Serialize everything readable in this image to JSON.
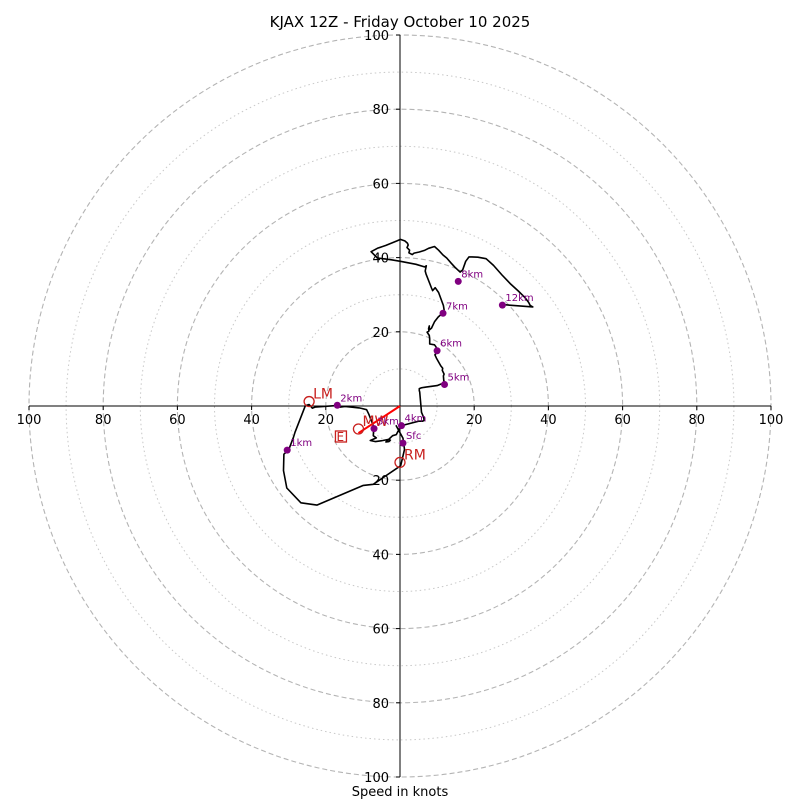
{
  "chart_data": {
    "type": "hodograph",
    "title": "KJAX 12Z - Friday October 10 2025",
    "xlabel": "Speed in knots",
    "units": "knots",
    "rmax": 100,
    "ring_major": [
      20,
      40,
      60,
      80,
      100
    ],
    "ring_minor": [
      10,
      30,
      50,
      70,
      90
    ],
    "tick_labels_x": [
      "100",
      "80",
      "60",
      "40",
      "20",
      "20",
      "40",
      "60",
      "80",
      "100"
    ],
    "tick_values_x": [
      -100,
      -80,
      -60,
      -40,
      -20,
      20,
      40,
      60,
      80,
      100
    ],
    "tick_labels_y": [
      "100",
      "80",
      "60",
      "40",
      "20",
      "20",
      "40",
      "60",
      "80",
      "100"
    ],
    "tick_values_y": [
      100,
      80,
      60,
      40,
      20,
      -20,
      -40,
      -60,
      -80,
      -100
    ],
    "trace": [
      [
        -1.1,
        -5.2
      ],
      [
        0.8,
        -8.7
      ],
      [
        1.2,
        -11.7
      ],
      [
        0.2,
        -16.1
      ],
      [
        -7.2,
        -21.1
      ],
      [
        -9.9,
        -21.4
      ],
      [
        -22.4,
        -26.7
      ],
      [
        -26.7,
        -26.1
      ],
      [
        -30.5,
        -22.1
      ],
      [
        -31.4,
        -17.4
      ],
      [
        -31.3,
        -13.0
      ],
      [
        -30.0,
        -11.8
      ],
      [
        -28.7,
        -8.4
      ],
      [
        -28.3,
        -7.1
      ],
      [
        -25.5,
        0.1
      ],
      [
        -24.5,
        0.4
      ],
      [
        -23.6,
        -0.6
      ],
      [
        -22.9,
        -0.3
      ],
      [
        -17.1,
        0.1
      ],
      [
        -16.1,
        -0.3
      ],
      [
        -14.8,
        -0.1
      ],
      [
        -11.0,
        -0.5
      ],
      [
        -10.1,
        -0.7
      ],
      [
        -9.0,
        -1.0
      ],
      [
        -8.4,
        -2.2
      ],
      [
        -7.3,
        -5.0
      ],
      [
        -7.1,
        -5.9
      ],
      [
        -7.2,
        -8.0
      ],
      [
        -6.4,
        -8.6
      ],
      [
        -8.0,
        -9.3
      ],
      [
        -6.6,
        -9.6
      ],
      [
        -4.6,
        -9.3
      ],
      [
        -3.1,
        -9.0
      ],
      [
        -2.6,
        -9.2
      ],
      [
        -3.0,
        -9.6
      ],
      [
        -3.8,
        -9.7
      ],
      [
        -2.0,
        -8.0
      ],
      [
        -1.0,
        -7.7
      ],
      [
        0.2,
        -5.4
      ],
      [
        1.2,
        -5.1
      ],
      [
        5.0,
        -4.1
      ],
      [
        6.0,
        -4.1
      ],
      [
        6.5,
        -3.9
      ],
      [
        6.4,
        -3.1
      ],
      [
        5.8,
        -1.7
      ],
      [
        5.3,
        3.8
      ],
      [
        5.2,
        4.1
      ],
      [
        5.2,
        4.7
      ],
      [
        5.8,
        4.9
      ],
      [
        6.4,
        5.0
      ],
      [
        7.0,
        5.1
      ],
      [
        10.0,
        5.5
      ],
      [
        11.0,
        5.9
      ],
      [
        12.2,
        6.2
      ],
      [
        12.2,
        6.3
      ],
      [
        11.8,
        6.8
      ],
      [
        11.7,
        8.1
      ],
      [
        11.9,
        8.6
      ],
      [
        11.4,
        9.6
      ],
      [
        11.5,
        10.2
      ],
      [
        11.0,
        10.8
      ],
      [
        9.8,
        12.9
      ],
      [
        9.4,
        13.8
      ],
      [
        10.3,
        14.8
      ],
      [
        9.6,
        16.1
      ],
      [
        9.3,
        16.5
      ],
      [
        8.0,
        16.7
      ],
      [
        8.0,
        18.0
      ],
      [
        7.9,
        19.0
      ],
      [
        7.3,
        19.9
      ],
      [
        7.8,
        20.2
      ],
      [
        7.7,
        20.9
      ],
      [
        7.9,
        21.6
      ],
      [
        7.9,
        20.9
      ],
      [
        8.0,
        20.6
      ],
      [
        8.5,
        21.0
      ],
      [
        9.3,
        22.7
      ],
      [
        10.3,
        24.0
      ],
      [
        11.2,
        24.8
      ],
      [
        11.6,
        25.0
      ],
      [
        11.9,
        25.9
      ],
      [
        11.7,
        27.1
      ],
      [
        11.2,
        28.4
      ],
      [
        10.4,
        30.6
      ],
      [
        9.5,
        31.9
      ],
      [
        8.8,
        31.1
      ],
      [
        8.5,
        31.8
      ],
      [
        7.0,
        35.6
      ],
      [
        6.8,
        36.4
      ],
      [
        7.1,
        37.8
      ],
      [
        6.6,
        37.5
      ],
      [
        4.3,
        38.2
      ],
      [
        2.2,
        38.6
      ],
      [
        0.1,
        39.0
      ],
      [
        -2.3,
        39.4
      ],
      [
        -6.1,
        39.9
      ],
      [
        -7.8,
        41.6
      ],
      [
        -6.1,
        42.5
      ],
      [
        -3.8,
        43.3
      ],
      [
        -0.8,
        44.5
      ],
      [
        0.1,
        44.9
      ],
      [
        1.3,
        44.5
      ],
      [
        2.0,
        43.9
      ],
      [
        2.2,
        43.4
      ],
      [
        1.9,
        42.7
      ],
      [
        2.6,
        42.0
      ],
      [
        2.4,
        41.3
      ],
      [
        3.3,
        40.8
      ],
      [
        3.8,
        41.2
      ],
      [
        5.2,
        41.5
      ],
      [
        6.7,
        42.0
      ],
      [
        7.7,
        42.5
      ],
      [
        9.3,
        43.0
      ],
      [
        10.4,
        42.0
      ],
      [
        11.6,
        40.7
      ],
      [
        12.6,
        39.9
      ],
      [
        13.8,
        38.5
      ],
      [
        14.8,
        37.4
      ],
      [
        16.2,
        36.1
      ],
      [
        16.9,
        36.7
      ],
      [
        17.7,
        39.0
      ],
      [
        18.6,
        40.2
      ],
      [
        19.4,
        40.2
      ],
      [
        21.0,
        40.1
      ],
      [
        23.2,
        39.7
      ],
      [
        25.2,
        37.9
      ],
      [
        27.5,
        35.3
      ],
      [
        29.7,
        33.0
      ],
      [
        31.9,
        31.0
      ],
      [
        33.6,
        29.3
      ],
      [
        34.7,
        27.9
      ],
      [
        35.1,
        27.1
      ],
      [
        35.8,
        26.7
      ],
      [
        28.0,
        27.3
      ]
    ],
    "height_points": [
      {
        "label": "Sfc",
        "u": 0.8,
        "v": -10.0
      },
      {
        "label": "1km",
        "u": -30.4,
        "v": -11.9
      },
      {
        "label": "2km",
        "u": -16.9,
        "v": 0.2
      },
      {
        "label": "3km",
        "u": -7.0,
        "v": -6.1
      },
      {
        "label": "4km",
        "u": 0.4,
        "v": -5.3
      },
      {
        "label": "5km",
        "u": 12.0,
        "v": 5.8
      },
      {
        "label": "6km",
        "u": 10.0,
        "v": 14.9
      },
      {
        "label": "7km",
        "u": 11.6,
        "v": 25.0
      },
      {
        "label": "8km",
        "u": 15.7,
        "v": 33.6
      },
      {
        "label": "12km",
        "u": 27.6,
        "v": 27.2
      }
    ],
    "storm_motion": [
      {
        "label": "LM",
        "u": -24.5,
        "v": 1.2
      },
      {
        "label": "MW",
        "u": -11.2,
        "v": -6.2
      },
      {
        "label": "RM",
        "u": 0.0,
        "v": -15.2
      }
    ],
    "effective_inflow_label": "E",
    "shear_vector": {
      "u0": 0.0,
      "v0": 0.0,
      "u1": -11.2,
      "v1": -7.3
    },
    "colors": {
      "trace": "#000000",
      "points": "#800080",
      "storm": "#c8201e",
      "shear": "#ff0000",
      "grid": "#b4b4b4",
      "axis": "#000000"
    }
  }
}
